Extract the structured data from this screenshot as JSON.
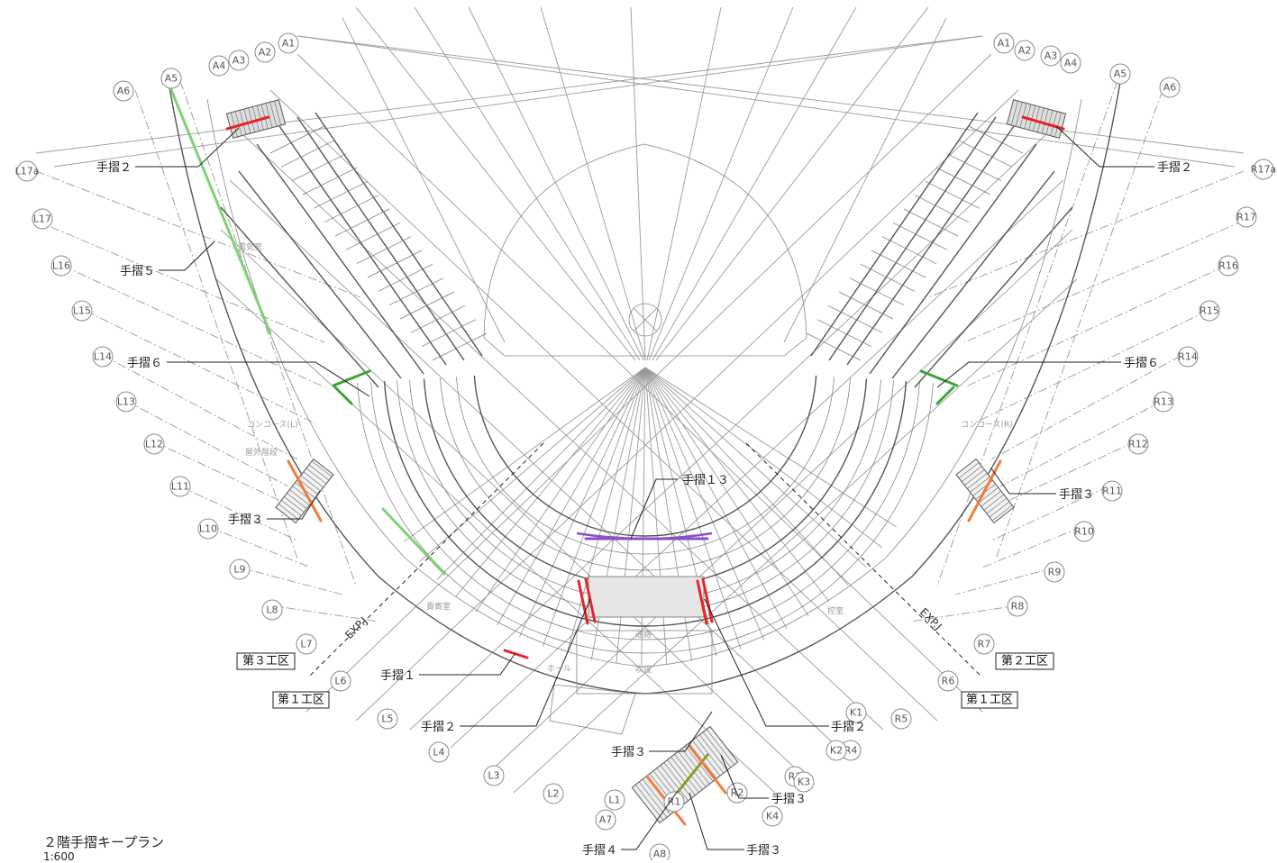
{
  "drawing": {
    "title": "２階手摺キープラン",
    "scale": "1:600"
  },
  "zones": {
    "zone3": "第３工区",
    "zone1": "第１工区",
    "zone2": "第２工区"
  },
  "expansion_joint": "EXP.J",
  "handrail_callouts": [
    "手摺２",
    "手摺５",
    "手摺６",
    "手摺３",
    "手摺１",
    "手摺２",
    "手摺１３",
    "手摺２",
    "手摺６",
    "手摺３",
    "手摺２",
    "手摺３",
    "手摺３",
    "手摺４",
    "手摺３"
  ],
  "room_labels": {
    "concourse_left": "コンコース(L)",
    "concourse_right": "コンコース(R)",
    "electrical_room": "電気室",
    "outdoor_stair": "屋外階段",
    "corridor": "通路",
    "void": "吹抜",
    "hall": "ホール",
    "control_room": "控室",
    "vip_room": "貴賓室"
  },
  "grid_bubbles": {
    "left": [
      "A6",
      "A5",
      "A4",
      "A3",
      "A2",
      "A1",
      "L17a",
      "L17",
      "L16",
      "L15",
      "L14",
      "L13",
      "L12",
      "L11",
      "L10",
      "L9",
      "L8",
      "L7",
      "L6",
      "L5",
      "L4",
      "L3",
      "L2",
      "L1",
      "A7",
      "A8"
    ],
    "right": [
      "A1",
      "A2",
      "A3",
      "A4",
      "A5",
      "A6",
      "R17a",
      "R17",
      "R16",
      "R15",
      "R14",
      "R13",
      "R12",
      "R11",
      "R10",
      "R9",
      "R8",
      "R7",
      "R6",
      "R5",
      "R4",
      "R3",
      "R2",
      "R1",
      "K1",
      "K2",
      "K3",
      "K4"
    ]
  },
  "handrail_colors": {
    "red": "#e8232a",
    "green": "#3aa63a",
    "light_green": "#7fd07a",
    "orange": "#f07d3a",
    "purple": "#8a4fc7",
    "olive": "#8a9a2a"
  }
}
